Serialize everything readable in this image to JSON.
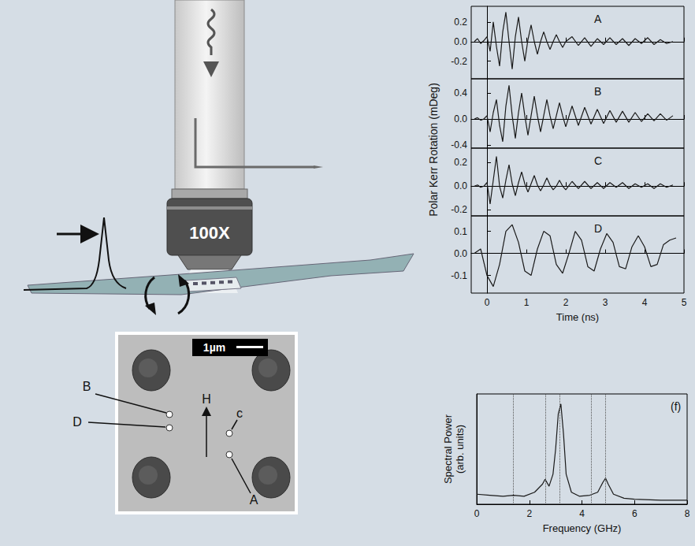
{
  "diagram": {
    "objective_label": "100X",
    "micrograph": {
      "scale_bar": "1µm",
      "field_label": "H",
      "points": [
        {
          "label": "B"
        },
        {
          "label": "D"
        },
        {
          "label": "c"
        },
        {
          "label": "A"
        }
      ]
    }
  },
  "chart_data": [
    {
      "type": "line",
      "title": "A",
      "ylabel": "Polar Kerr Rotation (mDeg)",
      "xlim": [
        -0.4,
        5
      ],
      "xticks": [
        0,
        1,
        2,
        3,
        4,
        5
      ],
      "ylim": [
        -0.38,
        0.36
      ],
      "yticks": [
        -0.2,
        {
          "value": 0,
          "label": "0.0"
        },
        0.2
      ],
      "tick_labels": "y",
      "grid": false,
      "color": "#1a1a1a",
      "x": [
        -0.32,
        -0.24,
        -0.16,
        -0.08,
        0,
        0.08,
        0.16,
        0.24,
        0.32,
        0.4,
        0.48,
        0.56,
        0.64,
        0.72,
        0.8,
        0.88,
        0.96,
        1.04,
        1.12,
        1.2,
        1.28,
        1.36,
        1.44,
        1.52,
        1.6,
        1.68,
        1.76,
        1.84,
        1.92,
        2.0,
        2.16,
        2.32,
        2.48,
        2.64,
        2.8,
        2.96,
        3.12,
        3.28,
        3.44,
        3.6,
        3.76,
        3.92,
        4.08,
        4.24,
        4.4,
        4.56,
        4.72
      ],
      "values": [
        0.0,
        0.03,
        -0.02,
        0.01,
        0.05,
        -0.1,
        0.2,
        -0.05,
        -0.25,
        0.1,
        0.3,
        0.0,
        -0.28,
        0.05,
        0.25,
        0.0,
        -0.2,
        0.02,
        0.17,
        0.0,
        -0.13,
        0.0,
        0.1,
        0.0,
        -0.08,
        0.0,
        0.07,
        0.0,
        -0.06,
        0.0,
        0.05,
        -0.04,
        0.04,
        -0.05,
        0.03,
        -0.03,
        0.04,
        -0.03,
        0.03,
        -0.04,
        0.03,
        -0.02,
        0.04,
        -0.03,
        0.02,
        -0.02,
        0.0
      ]
    },
    {
      "type": "line",
      "title": "B",
      "xlim": [
        -0.4,
        5
      ],
      "xticks": [
        0,
        1,
        2,
        3,
        4,
        5
      ],
      "ylim": [
        -0.45,
        0.62
      ],
      "yticks": [
        -0.4,
        {
          "value": 0,
          "label": "0.0"
        },
        0.4
      ],
      "tick_labels": "y",
      "grid": false,
      "color": "#1a1a1a",
      "x": [
        -0.32,
        -0.24,
        -0.16,
        -0.08,
        0,
        0.08,
        0.16,
        0.24,
        0.32,
        0.4,
        0.48,
        0.56,
        0.64,
        0.72,
        0.8,
        0.88,
        0.96,
        1.04,
        1.12,
        1.2,
        1.28,
        1.36,
        1.44,
        1.52,
        1.6,
        1.68,
        1.76,
        1.84,
        1.92,
        2.0,
        2.16,
        2.32,
        2.48,
        2.64,
        2.8,
        2.96,
        3.12,
        3.28,
        3.44,
        3.6,
        3.76,
        3.92,
        4.08,
        4.24,
        4.4,
        4.56,
        4.72
      ],
      "values": [
        0.0,
        0.02,
        -0.02,
        0.0,
        0.05,
        -0.2,
        0.1,
        0.3,
        -0.1,
        -0.35,
        0.2,
        0.52,
        0.05,
        -0.3,
        0.1,
        0.4,
        0.05,
        -0.25,
        0.05,
        0.35,
        0.05,
        -0.2,
        0.05,
        0.3,
        0.05,
        -0.15,
        0.05,
        0.25,
        0.05,
        -0.12,
        0.2,
        -0.1,
        0.18,
        -0.08,
        0.15,
        -0.07,
        0.13,
        -0.05,
        0.12,
        -0.05,
        0.1,
        -0.04,
        0.08,
        -0.03,
        0.08,
        -0.02,
        0.05
      ]
    },
    {
      "type": "line",
      "title": "C",
      "xlim": [
        -0.4,
        5
      ],
      "xticks": [
        0,
        1,
        2,
        3,
        4,
        5
      ],
      "ylim": [
        -0.25,
        0.32
      ],
      "yticks": [
        -0.2,
        {
          "value": 0,
          "label": "0.0"
        },
        0.2
      ],
      "tick_labels": "y",
      "grid": false,
      "color": "#1a1a1a",
      "x": [
        -0.32,
        -0.24,
        -0.16,
        -0.08,
        0,
        0.08,
        0.16,
        0.24,
        0.32,
        0.4,
        0.48,
        0.56,
        0.64,
        0.72,
        0.8,
        0.88,
        0.96,
        1.04,
        1.12,
        1.2,
        1.28,
        1.36,
        1.44,
        1.52,
        1.6,
        1.68,
        1.76,
        1.84,
        1.92,
        2.0,
        2.16,
        2.32,
        2.48,
        2.64,
        2.8,
        2.96,
        3.12,
        3.28,
        3.44,
        3.6,
        3.76,
        3.92,
        4.08,
        4.24,
        4.4,
        4.56,
        4.72
      ],
      "values": [
        0.0,
        0.01,
        -0.01,
        0.0,
        0.03,
        -0.15,
        0.05,
        0.25,
        0.0,
        -0.1,
        0.05,
        0.18,
        0.02,
        -0.08,
        0.03,
        0.12,
        0.02,
        -0.05,
        0.02,
        0.09,
        0.01,
        -0.04,
        0.01,
        0.07,
        0.01,
        -0.03,
        0.0,
        0.05,
        0.0,
        -0.03,
        0.04,
        -0.02,
        0.04,
        -0.02,
        0.03,
        -0.02,
        0.03,
        -0.01,
        0.03,
        -0.02,
        0.02,
        -0.01,
        0.02,
        -0.02,
        0.02,
        -0.01,
        0.01
      ]
    },
    {
      "type": "line",
      "title": "D",
      "xlabel": "Time (ns)",
      "xlim": [
        -0.4,
        5
      ],
      "xticks": [
        0,
        1,
        2,
        3,
        4,
        5
      ],
      "ylim": [
        -0.18,
        0.17
      ],
      "yticks": [
        -0.1,
        {
          "value": 0,
          "label": "0.0"
        },
        0.1
      ],
      "tick_labels": true,
      "grid": false,
      "color": "#1a1a1a",
      "x": [
        -0.32,
        -0.16,
        0,
        0.16,
        0.32,
        0.48,
        0.64,
        0.8,
        0.96,
        1.12,
        1.28,
        1.44,
        1.6,
        1.76,
        1.92,
        2.08,
        2.24,
        2.4,
        2.56,
        2.72,
        2.88,
        3.04,
        3.2,
        3.36,
        3.52,
        3.68,
        3.84,
        4.0,
        4.16,
        4.32,
        4.48,
        4.64,
        4.8
      ],
      "values": [
        0.0,
        0.02,
        -0.1,
        -0.15,
        -0.05,
        0.1,
        0.13,
        0.05,
        -0.08,
        -0.1,
        0.02,
        0.1,
        0.08,
        -0.05,
        -0.09,
        0.0,
        0.1,
        0.06,
        -0.06,
        -0.08,
        0.02,
        0.09,
        0.05,
        -0.06,
        -0.07,
        0.03,
        0.08,
        0.03,
        -0.06,
        -0.05,
        0.04,
        0.06,
        0.07
      ]
    },
    {
      "type": "line",
      "title": "(f)",
      "xlabel": "Frequency (GHz)",
      "ylabel": "Spectral Power (arb. units)",
      "xlim": [
        0,
        8
      ],
      "xticks": [
        0,
        2,
        4,
        6,
        8
      ],
      "ylim": [
        0,
        1.1
      ],
      "tick_labels": "x",
      "grid": false,
      "color": "#1a1a1a",
      "vlines": [
        1.4,
        2.6,
        3.15,
        4.35,
        4.9
      ],
      "x": [
        0,
        0.5,
        1.0,
        1.4,
        1.8,
        2.2,
        2.5,
        2.6,
        2.75,
        2.9,
        3.0,
        3.1,
        3.2,
        3.3,
        3.4,
        3.6,
        3.9,
        4.3,
        4.6,
        4.8,
        4.9,
        5.0,
        5.2,
        5.6,
        6.0,
        7.0,
        8.0
      ],
      "values": [
        0.1,
        0.09,
        0.08,
        0.09,
        0.08,
        0.12,
        0.2,
        0.25,
        0.18,
        0.3,
        0.55,
        0.9,
        1.0,
        0.7,
        0.3,
        0.12,
        0.08,
        0.09,
        0.12,
        0.22,
        0.26,
        0.2,
        0.1,
        0.06,
        0.05,
        0.04,
        0.04
      ]
    }
  ]
}
